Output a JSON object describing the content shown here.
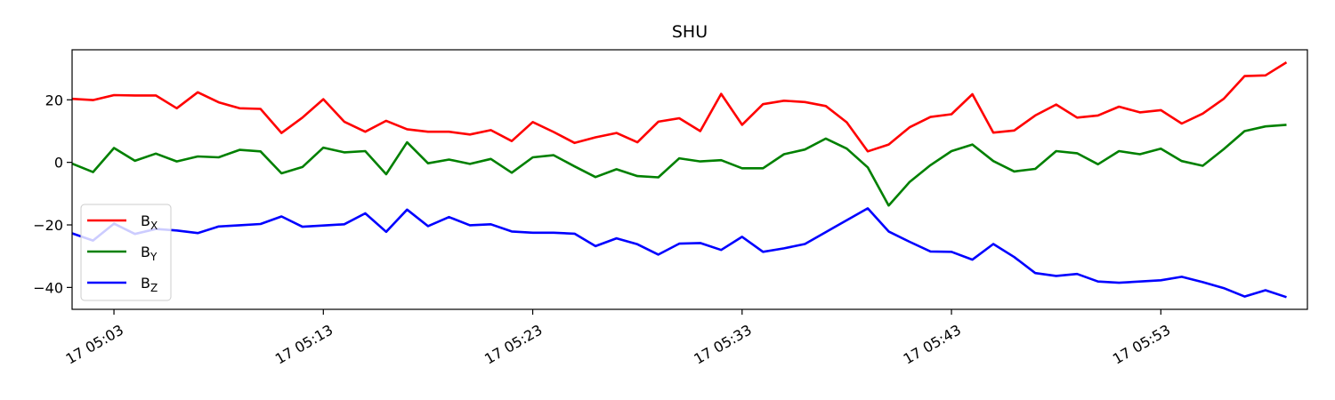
{
  "chart_data": {
    "type": "line",
    "title": "SHU",
    "xlabel": "",
    "ylabel": "",
    "x_start": "17 05:01",
    "x_step_minutes": 1,
    "x_ticks": [
      "17 05:03",
      "17 05:13",
      "17 05:23",
      "17 05:33",
      "17 05:43",
      "17 05:53"
    ],
    "y_ticks": [
      "20",
      "0",
      "−20",
      "−40"
    ],
    "y_tick_values": [
      20,
      0,
      -20,
      -40
    ],
    "ylim": [
      -47,
      36
    ],
    "xlim": [
      "17 05:01",
      "17 06:00"
    ],
    "grid": false,
    "legend_position": "lower-left",
    "series": [
      {
        "name": "B",
        "name_sub": "X",
        "color": "#ff0000",
        "values": [
          20.3,
          19.9,
          21.5,
          21.4,
          21.4,
          17.3,
          22.4,
          19.2,
          17.3,
          17.1,
          9.4,
          14.3,
          20.2,
          13.0,
          9.8,
          13.3,
          10.6,
          9.8,
          9.8,
          8.9,
          10.3,
          6.8,
          12.9,
          9.7,
          6.2,
          8.0,
          9.4,
          6.4,
          13.0,
          14.1,
          10.0,
          21.9,
          12.0,
          18.6,
          19.7,
          19.3,
          18.0,
          12.8,
          3.5,
          5.7,
          11.2,
          14.5,
          15.4,
          21.8,
          9.5,
          10.2,
          15.0,
          18.5,
          14.3,
          15.0,
          17.8,
          16.0,
          16.7,
          12.4,
          15.6,
          20.3,
          27.6,
          27.8,
          32.0
        ]
      },
      {
        "name": "B",
        "name_sub": "Y",
        "color": "#008000",
        "values": [
          -0.4,
          -3.1,
          4.6,
          0.5,
          2.8,
          0.3,
          1.9,
          1.6,
          4.0,
          3.5,
          -3.5,
          -1.5,
          4.7,
          3.2,
          3.6,
          -3.8,
          6.4,
          -0.3,
          0.9,
          -0.5,
          1.1,
          -3.3,
          1.6,
          2.3,
          -1.3,
          -4.7,
          -2.2,
          -4.4,
          -4.8,
          1.3,
          0.3,
          0.7,
          -1.9,
          -1.9,
          2.6,
          4.1,
          7.6,
          4.4,
          -1.6,
          -13.8,
          -6.3,
          -0.9,
          3.6,
          5.7,
          0.4,
          -2.9,
          -2.1,
          3.6,
          2.9,
          -0.6,
          3.6,
          2.6,
          4.4,
          0.4,
          -1.1,
          4.2,
          10.0,
          11.5,
          12.0
        ]
      },
      {
        "name": "B",
        "name_sub": "Z",
        "color": "#0000ff",
        "values": [
          -22.7,
          -25.0,
          -19.6,
          -22.9,
          -21.3,
          -21.8,
          -22.6,
          -20.5,
          -20.1,
          -19.7,
          -17.3,
          -20.6,
          -20.2,
          -19.8,
          -16.3,
          -22.2,
          -15.1,
          -20.4,
          -17.5,
          -20.1,
          -19.8,
          -22.1,
          -22.5,
          -22.5,
          -22.8,
          -26.8,
          -24.3,
          -26.2,
          -29.5,
          -26.0,
          -25.8,
          -28.0,
          -23.8,
          -28.6,
          -27.5,
          -26.1,
          -22.3,
          -18.5,
          -14.7,
          -22.1,
          -25.4,
          -28.5,
          -28.6,
          -31.1,
          -26.1,
          -30.3,
          -35.4,
          -36.3,
          -35.7,
          -38.1,
          -38.5,
          -38.1,
          -37.7,
          -36.6,
          -38.3,
          -40.2,
          -42.9,
          -40.9,
          -43.1
        ]
      }
    ]
  }
}
